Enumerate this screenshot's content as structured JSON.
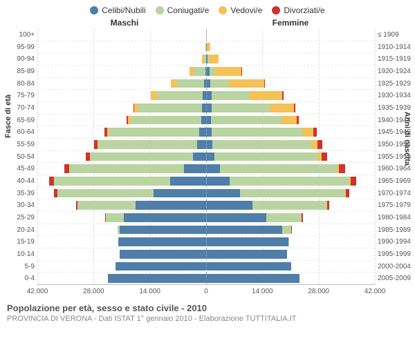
{
  "chart": {
    "type": "population-pyramid",
    "legend": [
      {
        "label": "Celibi/Nubili",
        "color": "#4f7ea8"
      },
      {
        "label": "Coniugati/e",
        "color": "#b9d4a1"
      },
      {
        "label": "Vedovi/e",
        "color": "#f4c257"
      },
      {
        "label": "Divorziati/e",
        "color": "#cc342f"
      }
    ],
    "headers": {
      "left": "Maschi",
      "right": "Femmine"
    },
    "axis_titles": {
      "left": "Fasce di età",
      "right": "Anni di nascita"
    },
    "x_ticks": [
      -42000,
      -28000,
      -14000,
      0,
      14000,
      28000,
      42000
    ],
    "x_tick_labels": [
      "42.000",
      "28.000",
      "14.000",
      "0",
      "14.000",
      "28.000",
      "42.000"
    ],
    "x_max": 42000,
    "colors": {
      "celibi": "#4f7ea8",
      "coniugati": "#b9d4a1",
      "vedovi": "#f4c257",
      "divorziati": "#cc342f",
      "grid": "#e8e8e8",
      "center": "#8fa7b8",
      "text": "#555555",
      "bg": "#ffffff"
    },
    "rows": [
      {
        "age": "100+",
        "birth": "≤ 1909",
        "m": {
          "c": 0,
          "co": 0,
          "v": 50,
          "d": 0
        },
        "f": {
          "c": 0,
          "co": 0,
          "v": 250,
          "d": 0
        }
      },
      {
        "age": "95-99",
        "birth": "1910-1914",
        "m": {
          "c": 20,
          "co": 60,
          "v": 120,
          "d": 0
        },
        "f": {
          "c": 100,
          "co": 50,
          "v": 900,
          "d": 0
        }
      },
      {
        "age": "90-94",
        "birth": "1915-1919",
        "m": {
          "c": 60,
          "co": 500,
          "v": 400,
          "d": 0
        },
        "f": {
          "c": 350,
          "co": 300,
          "v": 2500,
          "d": 10
        }
      },
      {
        "age": "85-89",
        "birth": "1920-1924",
        "m": {
          "c": 250,
          "co": 2800,
          "v": 1100,
          "d": 20
        },
        "f": {
          "c": 800,
          "co": 1500,
          "v": 6500,
          "d": 50
        }
      },
      {
        "age": "80-84",
        "birth": "1925-1929",
        "m": {
          "c": 500,
          "co": 6800,
          "v": 1500,
          "d": 60
        },
        "f": {
          "c": 1100,
          "co": 4500,
          "v": 8800,
          "d": 120
        }
      },
      {
        "age": "75-79",
        "birth": "1930-1934",
        "m": {
          "c": 800,
          "co": 11500,
          "v": 1400,
          "d": 120
        },
        "f": {
          "c": 1300,
          "co": 9500,
          "v": 8200,
          "d": 250
        }
      },
      {
        "age": "70-74",
        "birth": "1935-1939",
        "m": {
          "c": 1000,
          "co": 15800,
          "v": 1100,
          "d": 250
        },
        "f": {
          "c": 1300,
          "co": 14500,
          "v": 6000,
          "d": 400
        }
      },
      {
        "age": "65-69",
        "birth": "1940-1944",
        "m": {
          "c": 1200,
          "co": 17500,
          "v": 700,
          "d": 400
        },
        "f": {
          "c": 1200,
          "co": 17500,
          "v": 3800,
          "d": 550
        }
      },
      {
        "age": "60-64",
        "birth": "1945-1949",
        "m": {
          "c": 1700,
          "co": 22500,
          "v": 500,
          "d": 650
        },
        "f": {
          "c": 1400,
          "co": 22500,
          "v": 2800,
          "d": 800
        }
      },
      {
        "age": "55-59",
        "birth": "1950-1954",
        "m": {
          "c": 2300,
          "co": 24500,
          "v": 300,
          "d": 850
        },
        "f": {
          "c": 1600,
          "co": 24500,
          "v": 1700,
          "d": 1050
        }
      },
      {
        "age": "50-54",
        "birth": "1955-1959",
        "m": {
          "c": 3200,
          "co": 25500,
          "v": 200,
          "d": 1000
        },
        "f": {
          "c": 2000,
          "co": 25800,
          "v": 1000,
          "d": 1250
        }
      },
      {
        "age": "45-49",
        "birth": "1960-1964",
        "m": {
          "c": 5500,
          "co": 28500,
          "v": 150,
          "d": 1150
        },
        "f": {
          "c": 3500,
          "co": 29000,
          "v": 600,
          "d": 1500
        }
      },
      {
        "age": "40-44",
        "birth": "1965-1969",
        "m": {
          "c": 9000,
          "co": 28800,
          "v": 100,
          "d": 1100
        },
        "f": {
          "c": 5800,
          "co": 29800,
          "v": 350,
          "d": 1400
        }
      },
      {
        "age": "35-39",
        "birth": "1970-1974",
        "m": {
          "c": 13000,
          "co": 24000,
          "v": 50,
          "d": 750
        },
        "f": {
          "c": 8500,
          "co": 26000,
          "v": 200,
          "d": 1000
        }
      },
      {
        "age": "30-34",
        "birth": "1975-1979",
        "m": {
          "c": 17500,
          "co": 14500,
          "v": 20,
          "d": 350
        },
        "f": {
          "c": 11500,
          "co": 18500,
          "v": 100,
          "d": 550
        }
      },
      {
        "age": "25-29",
        "birth": "1980-1984",
        "m": {
          "c": 20500,
          "co": 4500,
          "v": 0,
          "d": 80
        },
        "f": {
          "c": 15000,
          "co": 8800,
          "v": 30,
          "d": 200
        }
      },
      {
        "age": "20-24",
        "birth": "1985-1989",
        "m": {
          "c": 21500,
          "co": 600,
          "v": 0,
          "d": 0
        },
        "f": {
          "c": 19000,
          "co": 2100,
          "v": 0,
          "d": 30
        }
      },
      {
        "age": "15-19",
        "birth": "1990-1994",
        "m": {
          "c": 21800,
          "co": 20,
          "v": 0,
          "d": 0
        },
        "f": {
          "c": 20500,
          "co": 150,
          "v": 0,
          "d": 0
        }
      },
      {
        "age": "10-14",
        "birth": "1995-1999",
        "m": {
          "c": 21500,
          "co": 0,
          "v": 0,
          "d": 0
        },
        "f": {
          "c": 20200,
          "co": 0,
          "v": 0,
          "d": 0
        }
      },
      {
        "age": "5-9",
        "birth": "2000-2004",
        "m": {
          "c": 22500,
          "co": 0,
          "v": 0,
          "d": 0
        },
        "f": {
          "c": 21200,
          "co": 0,
          "v": 0,
          "d": 0
        }
      },
      {
        "age": "0-4",
        "birth": "2005-2009",
        "m": {
          "c": 24500,
          "co": 0,
          "v": 0,
          "d": 0
        },
        "f": {
          "c": 23200,
          "co": 0,
          "v": 0,
          "d": 0
        }
      }
    ]
  },
  "caption": {
    "title": "Popolazione per età, sesso e stato civile - 2010",
    "subtitle": "PROVINCIA DI VERONA - Dati ISTAT 1° gennaio 2010 - Elaborazione TUTTITALIA.IT"
  }
}
